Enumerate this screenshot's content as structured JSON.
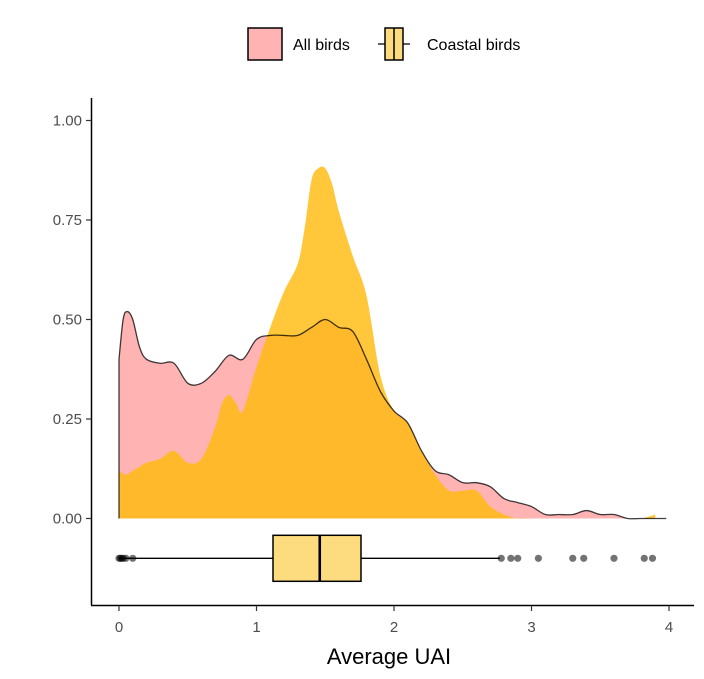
{
  "chart_data": {
    "type": "area",
    "title": "",
    "xlabel": "Average UAI",
    "ylabel": "",
    "xlim": [
      -0.2,
      4.05
    ],
    "ylim": [
      -0.22,
      1.06
    ],
    "x_ticks": [
      0,
      1,
      2,
      3,
      4
    ],
    "x_tick_labels": [
      "0",
      "1",
      "2",
      "3",
      "4"
    ],
    "y_ticks": [
      0.0,
      0.25,
      0.5,
      0.75,
      1.0
    ],
    "y_tick_labels": [
      "0.00",
      "0.25",
      "0.50",
      "0.75",
      "1.00"
    ],
    "grid": false,
    "legend_position": "top",
    "legend": [
      {
        "label": "All birds",
        "color": "#ffb3b3",
        "symbol": "filled-box"
      },
      {
        "label": "Coastal birds",
        "color": "#fddc80",
        "symbol": "boxplot"
      }
    ],
    "series": [
      {
        "name": "All birds",
        "kind": "density",
        "fill": "#ffb3b3",
        "stroke": "#000000",
        "x": [
          0.0,
          0.03,
          0.06,
          0.1,
          0.15,
          0.2,
          0.3,
          0.4,
          0.5,
          0.6,
          0.7,
          0.8,
          0.9,
          1.0,
          1.1,
          1.2,
          1.3,
          1.4,
          1.5,
          1.6,
          1.7,
          1.8,
          1.9,
          2.0,
          2.1,
          2.2,
          2.3,
          2.4,
          2.5,
          2.6,
          2.7,
          2.8,
          2.9,
          3.0,
          3.1,
          3.2,
          3.3,
          3.4,
          3.5,
          3.6,
          3.7,
          3.8,
          3.9,
          3.98
        ],
        "y": [
          0.4,
          0.5,
          0.52,
          0.5,
          0.43,
          0.4,
          0.39,
          0.39,
          0.34,
          0.34,
          0.37,
          0.41,
          0.4,
          0.45,
          0.46,
          0.46,
          0.46,
          0.48,
          0.5,
          0.48,
          0.47,
          0.4,
          0.32,
          0.27,
          0.24,
          0.17,
          0.12,
          0.11,
          0.09,
          0.09,
          0.08,
          0.05,
          0.04,
          0.03,
          0.01,
          0.01,
          0.01,
          0.02,
          0.01,
          0.01,
          0.0,
          0.0,
          0.0,
          0.0
        ]
      },
      {
        "name": "Coastal birds",
        "kind": "density",
        "fill": "#ffbb0e",
        "stroke": "none",
        "x": [
          0.0,
          0.05,
          0.1,
          0.15,
          0.2,
          0.3,
          0.4,
          0.5,
          0.6,
          0.7,
          0.75,
          0.8,
          0.85,
          0.9,
          1.0,
          1.1,
          1.2,
          1.3,
          1.35,
          1.4,
          1.45,
          1.5,
          1.55,
          1.6,
          1.7,
          1.8,
          1.9,
          2.0,
          2.1,
          2.2,
          2.3,
          2.4,
          2.5,
          2.6,
          2.7,
          2.8,
          2.9,
          3.0,
          3.1,
          3.2,
          3.3,
          3.4,
          3.5,
          3.6,
          3.7,
          3.8,
          3.9
        ],
        "y": [
          0.12,
          0.11,
          0.12,
          0.13,
          0.14,
          0.15,
          0.17,
          0.14,
          0.15,
          0.23,
          0.29,
          0.31,
          0.29,
          0.27,
          0.38,
          0.48,
          0.57,
          0.64,
          0.73,
          0.85,
          0.88,
          0.88,
          0.84,
          0.77,
          0.66,
          0.56,
          0.36,
          0.27,
          0.24,
          0.17,
          0.11,
          0.07,
          0.07,
          0.07,
          0.03,
          0.01,
          0.0,
          0.0,
          0.0,
          0.0,
          0.0,
          0.0,
          0.0,
          0.0,
          0.0,
          0.0,
          0.01
        ]
      }
    ],
    "boxplot": {
      "name": "Coastal birds",
      "fill": "#fddc80",
      "y_position": -0.1,
      "whisker_low": 0.0,
      "q1": 1.12,
      "median": 1.46,
      "q3": 1.76,
      "whisker_high": 2.77,
      "outliers": [
        0.0,
        0.01,
        0.02,
        0.03,
        0.05,
        0.1,
        2.78,
        2.85,
        2.9,
        3.05,
        3.3,
        3.38,
        3.6,
        3.82,
        3.88
      ]
    }
  }
}
